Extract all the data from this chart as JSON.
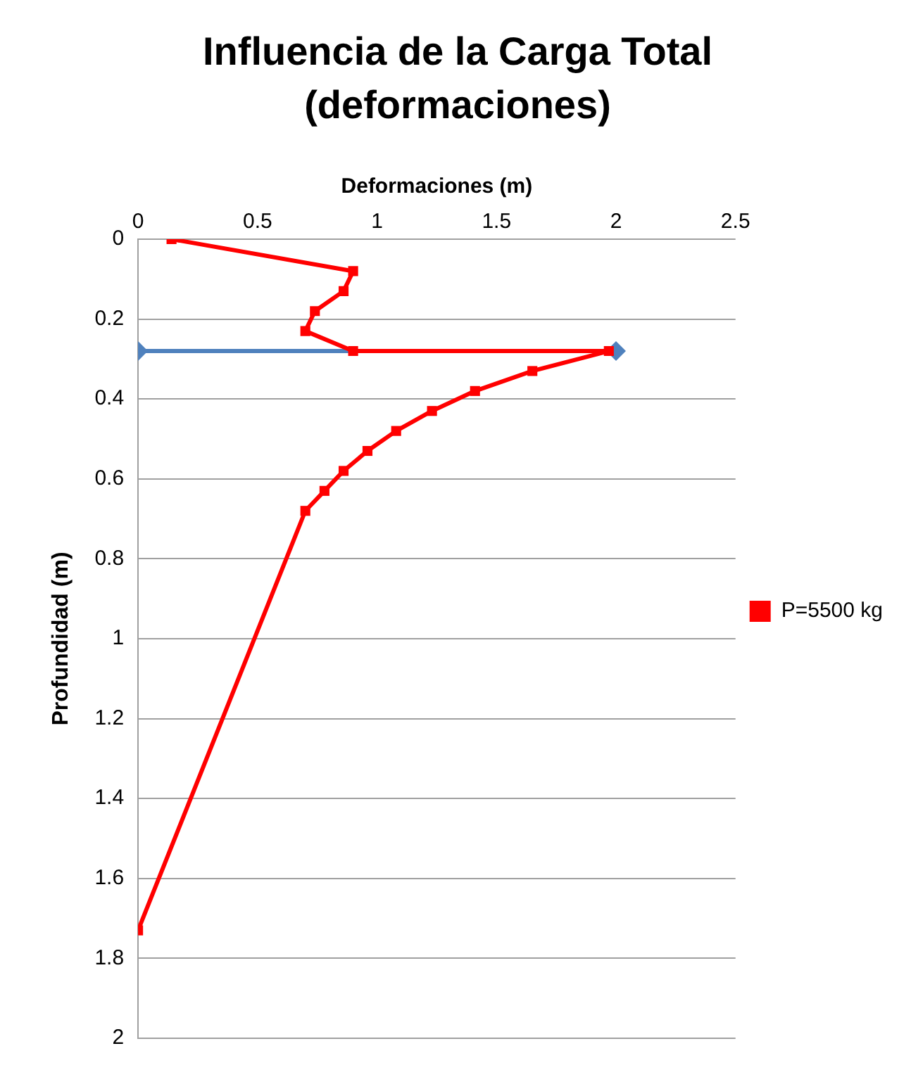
{
  "chart_data": {
    "type": "line",
    "title": "Influencia de la Carga Total (deformaciones)",
    "xlabel": "Deformaciones (m)",
    "ylabel": "Profundidad (m)",
    "xlim": [
      0,
      2.5
    ],
    "xticks": [
      0,
      0.5,
      1,
      1.5,
      2,
      2.5
    ],
    "ylim": [
      2,
      0
    ],
    "yticks": [
      0,
      0.2,
      0.4,
      0.6,
      0.8,
      1,
      1.2,
      1.4,
      1.6,
      1.8,
      2
    ],
    "grid": "y",
    "legend": "right",
    "line_style": "solid",
    "series": [
      {
        "color": "#4f81bd",
        "marker": "diamond",
        "x": [
          0,
          2
        ],
        "values": [
          0.28,
          0.28
        ]
      },
      {
        "name": "P=5500 kg",
        "color": "#ff0000",
        "marker": "square",
        "x": [
          0.14,
          0.9,
          0.86,
          0.74,
          0.7,
          0.9,
          1.97,
          1.65,
          1.41,
          1.23,
          1.08,
          0.96,
          0.86,
          0.78,
          0.7,
          0
        ],
        "values": [
          0,
          0.08,
          0.13,
          0.18,
          0.23,
          0.28,
          0.28,
          0.33,
          0.38,
          0.43,
          0.48,
          0.53,
          0.58,
          0.63,
          0.68,
          1.73
        ]
      }
    ]
  }
}
